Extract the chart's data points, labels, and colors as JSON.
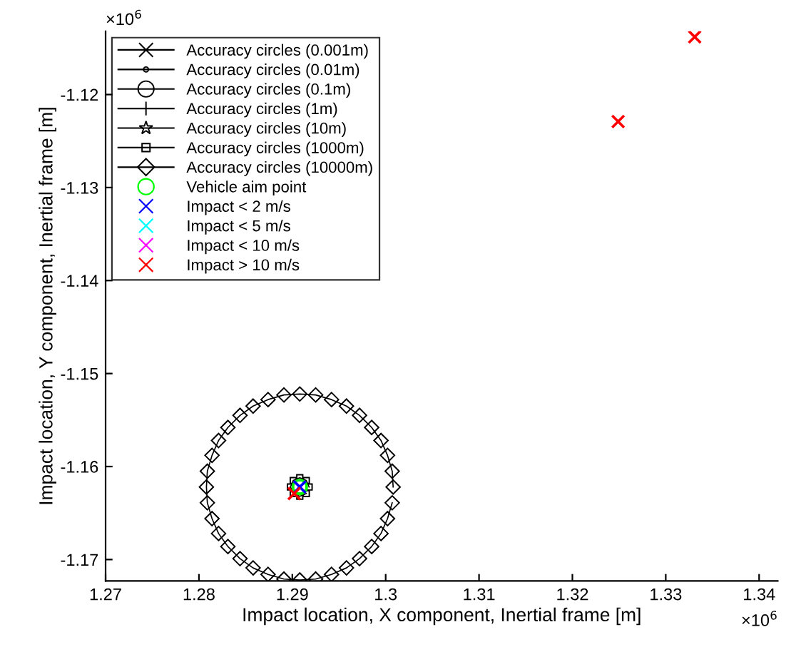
{
  "chart_data": {
    "type": "line",
    "xlabel": "Impact location, X component, Inertial frame [m]",
    "ylabel": "Impact location, Y component, Inertial frame [m]",
    "annotations": [
      "×10$^{6}$",
      "×10$^{6}$"
    ],
    "xlim": [
      1.27,
      1.342
    ],
    "ylim": [
      -1.1723,
      -1.1132
    ],
    "xticks": [
      1.27,
      1.28,
      1.29,
      1.3,
      1.31,
      1.32,
      1.33,
      1.34
    ],
    "yticks": [
      -1.17,
      -1.16,
      -1.15,
      -1.14,
      -1.13,
      -1.12
    ],
    "legend": "top left",
    "series": [
      {
        "name": "Accuracy circles (0.001m)",
        "marker": "cross",
        "color": "#000000"
      },
      {
        "name": "Accuracy circles (0.01m)",
        "marker": "point",
        "color": "#000000"
      },
      {
        "name": "Accuracy circles (0.1m)",
        "marker": "circle",
        "color": "#000000"
      },
      {
        "name": "Accuracy circles (1m)",
        "marker": "plus",
        "color": "#000000"
      },
      {
        "name": "Accuracy circles (10m)",
        "marker": "star",
        "color": "#000000"
      },
      {
        "name": "Accuracy circles (1000m)",
        "marker": "square",
        "color": "#000000",
        "x": [
          1.2918,
          1.2915,
          1.2908,
          1.2901,
          1.2898,
          1.2901,
          1.2908,
          1.2915
        ],
        "values": [
          -1.1622,
          -1.1615,
          -1.1612,
          -1.1615,
          -1.1622,
          -1.1629,
          -1.1632,
          -1.1629
        ]
      },
      {
        "name": "Accuracy circles (10000m)",
        "marker": "diamond",
        "color": "#000000",
        "x": [
          1.3008,
          1.3007,
          1.3002,
          1.2995,
          1.2985,
          1.2972,
          1.2958,
          1.2942,
          1.2925,
          1.2908,
          1.2891,
          1.2874,
          1.2858,
          1.2844,
          1.2831,
          1.2821,
          1.2814,
          1.2809,
          1.2808,
          1.2809,
          1.2814,
          1.2821,
          1.2831,
          1.2844,
          1.2858,
          1.2874,
          1.2891,
          1.2908,
          1.2925,
          1.2942,
          1.2958,
          1.2972,
          1.2985,
          1.2995,
          1.3002,
          1.3007
        ],
        "values": [
          -1.1622,
          -1.1605,
          -1.1588,
          -1.1572,
          -1.1558,
          -1.1545,
          -1.1535,
          -1.1528,
          -1.1523,
          -1.1522,
          -1.1523,
          -1.1528,
          -1.1535,
          -1.1545,
          -1.1558,
          -1.1572,
          -1.1588,
          -1.1605,
          -1.1622,
          -1.1639,
          -1.1656,
          -1.1672,
          -1.1686,
          -1.1699,
          -1.1709,
          -1.1716,
          -1.1721,
          -1.1722,
          -1.1721,
          -1.1716,
          -1.1709,
          -1.1699,
          -1.1686,
          -1.1672,
          -1.1656,
          -1.1639
        ]
      },
      {
        "name": "Vehicle aim point",
        "type": "scatter",
        "marker": "circle",
        "color": "#00ff00",
        "x": [
          1.2908
        ],
        "values": [
          -1.1622
        ]
      },
      {
        "name": "Impact < 2 m/s",
        "type": "scatter",
        "marker": "cross",
        "color": "#0000ff",
        "x": [
          1.2908
        ],
        "values": [
          -1.1622
        ]
      },
      {
        "name": "Impact < 5 m/s",
        "type": "scatter",
        "marker": "cross",
        "color": "#00ffff"
      },
      {
        "name": "Impact < 10 m/s",
        "type": "scatter",
        "marker": "cross",
        "color": "#ff00ff"
      },
      {
        "name": "Impact > 10 m/s",
        "type": "scatter",
        "marker": "cross",
        "color": "#ff0000",
        "x": [
          1.2902,
          1.3249,
          1.3331
        ],
        "values": [
          -1.1629,
          -1.1229,
          -1.1138
        ]
      }
    ]
  }
}
